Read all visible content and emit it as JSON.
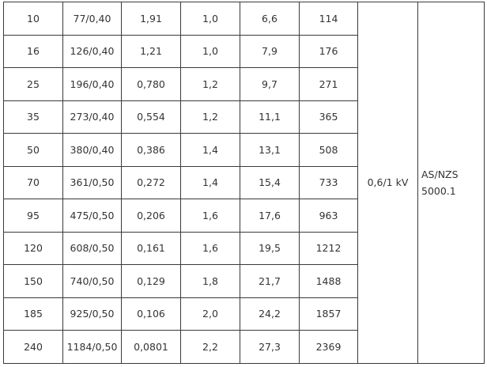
{
  "table": {
    "rows": [
      [
        "10",
        "77/0,40",
        "1,91",
        "1,0",
        "6,6",
        "114"
      ],
      [
        "16",
        "126/0,40",
        "1,21",
        "1,0",
        "7,9",
        "176"
      ],
      [
        "25",
        "196/0,40",
        "0,780",
        "1,2",
        "9,7",
        "271"
      ],
      [
        "35",
        "273/0,40",
        "0,554",
        "1,2",
        "11,1",
        "365"
      ],
      [
        "50",
        "380/0,40",
        "0,386",
        "1,4",
        "13,1",
        "508"
      ],
      [
        "70",
        "361/0,50",
        "0,272",
        "1,4",
        "15,4",
        "733"
      ],
      [
        "95",
        "475/0,50",
        "0,206",
        "1,6",
        "17,6",
        "963"
      ],
      [
        "120",
        "608/0,50",
        "0,161",
        "1,6",
        "19,5",
        "1212"
      ],
      [
        "150",
        "740/0,50",
        "0,129",
        "1,8",
        "21,7",
        "1488"
      ],
      [
        "185",
        "925/0,50",
        "0,106",
        "2,0",
        "24,2",
        "1857"
      ],
      [
        "240",
        "1184/0,50",
        "0,0801",
        "2,2",
        "27,3",
        "2369"
      ]
    ],
    "voltage": "0,6/1 kV",
    "standard": "AS/NZS 5000.1"
  }
}
